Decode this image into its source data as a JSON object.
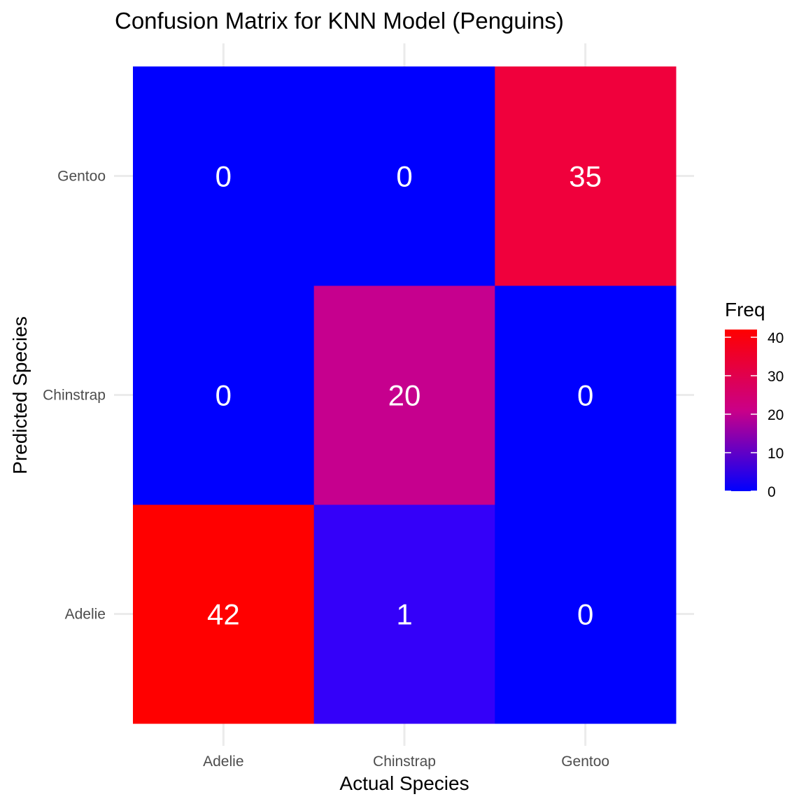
{
  "chart_data": {
    "type": "heatmap",
    "title": "Confusion Matrix for KNN Model (Penguins)",
    "xlabel": "Actual Species",
    "ylabel": "Predicted Species",
    "x_categories": [
      "Adelie",
      "Chinstrap",
      "Gentoo"
    ],
    "y_categories": [
      "Adelie",
      "Chinstrap",
      "Gentoo"
    ],
    "cells": [
      {
        "actual": "Adelie",
        "predicted": "Adelie",
        "value": 42
      },
      {
        "actual": "Chinstrap",
        "predicted": "Adelie",
        "value": 1
      },
      {
        "actual": "Gentoo",
        "predicted": "Adelie",
        "value": 0
      },
      {
        "actual": "Adelie",
        "predicted": "Chinstrap",
        "value": 0
      },
      {
        "actual": "Chinstrap",
        "predicted": "Chinstrap",
        "value": 20
      },
      {
        "actual": "Gentoo",
        "predicted": "Chinstrap",
        "value": 0
      },
      {
        "actual": "Adelie",
        "predicted": "Gentoo",
        "value": 0
      },
      {
        "actual": "Chinstrap",
        "predicted": "Gentoo",
        "value": 0
      },
      {
        "actual": "Gentoo",
        "predicted": "Gentoo",
        "value": 35
      }
    ],
    "legend": {
      "title": "Freq",
      "placement": "right",
      "ticks": [
        0,
        10,
        20,
        30,
        40
      ],
      "range": [
        0,
        42
      ]
    },
    "colors": {
      "low": "#0000ff",
      "high": "#ff0000",
      "cell_text": "#ffffff"
    },
    "grid": true
  }
}
